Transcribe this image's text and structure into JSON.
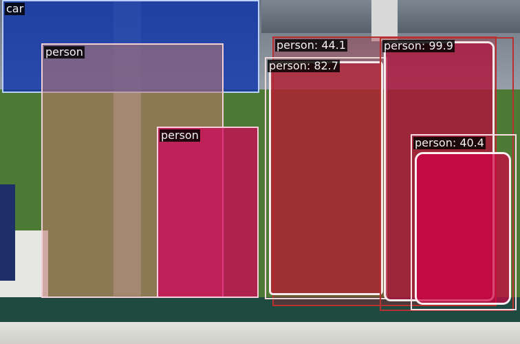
{
  "detections": [
    {
      "label": "car",
      "score": "",
      "text": "car",
      "box_color": "#bcd0ff",
      "fill": "rgba(10,50,170,0.78)"
    },
    {
      "label": "person",
      "score": "",
      "text": "person",
      "box_color": "#f4d0d8",
      "fill": "rgba(190,120,110,0.55)"
    },
    {
      "label": "person",
      "score": "",
      "text": "person",
      "box_color": "#ffd0dc",
      "fill": "rgba(210,0,90,0.72)"
    },
    {
      "label": "person",
      "score": "44.1",
      "text": "person: 44.1",
      "box_color": "#b83030",
      "fill": "rgba(170,30,50,0.35)"
    },
    {
      "label": "person",
      "score": "82.7",
      "text": "person: 82.7",
      "box_color": "#f0d8d8",
      "fill": "rgba(180,30,50,0.70)"
    },
    {
      "label": "person",
      "score": "99.9",
      "text": "person: 99.9",
      "box_color": "#b83030",
      "fill": "rgba(175,20,60,0.72)"
    },
    {
      "label": "person",
      "score": "40.4",
      "text": "person: 40.4",
      "box_color": "#ffdce6",
      "fill": "rgba(210,0,70,0.70)"
    }
  ],
  "colors": {
    "grass": "#4d7a34",
    "sky": "#b8c2cc",
    "ground": "#1f4a40",
    "wall": "#dcdcd6"
  }
}
